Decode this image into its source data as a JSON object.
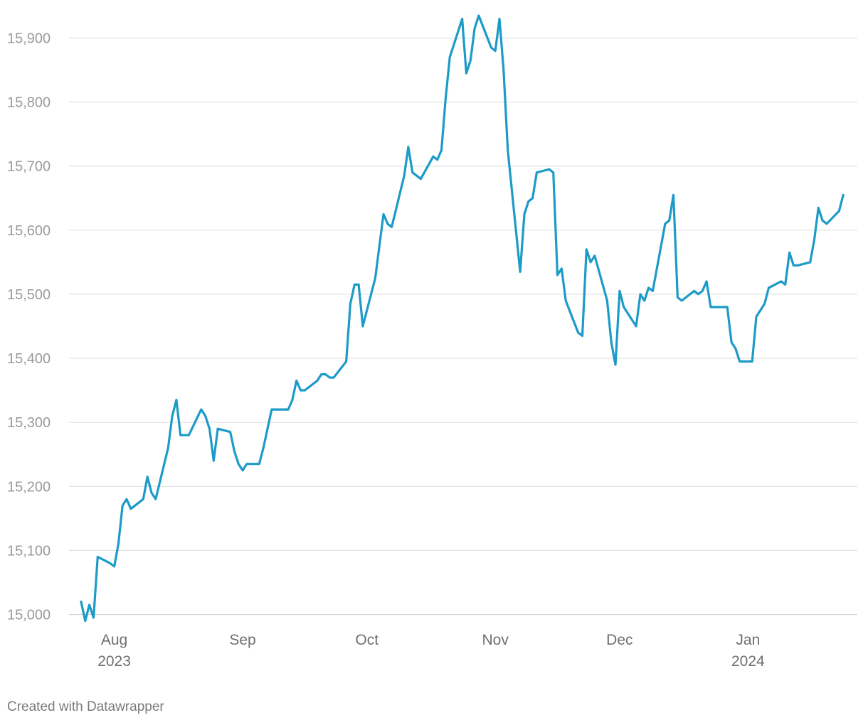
{
  "chart_data": {
    "type": "line",
    "title": "",
    "xlabel": "",
    "ylabel": "",
    "ylim": [
      15000,
      15900
    ],
    "y_ticks": [
      15000,
      15100,
      15200,
      15300,
      15400,
      15500,
      15600,
      15700,
      15800,
      15900
    ],
    "y_tick_labels": [
      "15,000",
      "15,100",
      "15,200",
      "15,300",
      "15,400",
      "15,500",
      "15,600",
      "15,700",
      "15,800",
      "15,900"
    ],
    "x_ticks": [
      {
        "date": "2023-08-01",
        "label": "Aug",
        "sublabel": "2023"
      },
      {
        "date": "2023-09-01",
        "label": "Sep",
        "sublabel": ""
      },
      {
        "date": "2023-10-01",
        "label": "Oct",
        "sublabel": ""
      },
      {
        "date": "2023-11-01",
        "label": "Nov",
        "sublabel": ""
      },
      {
        "date": "2023-12-01",
        "label": "Dec",
        "sublabel": ""
      },
      {
        "date": "2024-01-01",
        "label": "Jan",
        "sublabel": "2024"
      }
    ],
    "grid": true,
    "series": [
      {
        "color": "#1d9bc8",
        "points": [
          [
            "2023-07-24",
            15020
          ],
          [
            "2023-07-25",
            14990
          ],
          [
            "2023-07-26",
            15015
          ],
          [
            "2023-07-27",
            14995
          ],
          [
            "2023-07-28",
            15090
          ],
          [
            "2023-07-31",
            15080
          ],
          [
            "2023-08-01",
            15075
          ],
          [
            "2023-08-02",
            15110
          ],
          [
            "2023-08-03",
            15170
          ],
          [
            "2023-08-04",
            15180
          ],
          [
            "2023-08-05",
            15165
          ],
          [
            "2023-08-08",
            15180
          ],
          [
            "2023-08-09",
            15215
          ],
          [
            "2023-08-10",
            15190
          ],
          [
            "2023-08-11",
            15180
          ],
          [
            "2023-08-14",
            15260
          ],
          [
            "2023-08-15",
            15310
          ],
          [
            "2023-08-16",
            15335
          ],
          [
            "2023-08-17",
            15280
          ],
          [
            "2023-08-19",
            15280
          ],
          [
            "2023-08-22",
            15320
          ],
          [
            "2023-08-23",
            15310
          ],
          [
            "2023-08-24",
            15290
          ],
          [
            "2023-08-25",
            15240
          ],
          [
            "2023-08-26",
            15290
          ],
          [
            "2023-08-29",
            15285
          ],
          [
            "2023-08-30",
            15255
          ],
          [
            "2023-08-31",
            15235
          ],
          [
            "2023-09-01",
            15225
          ],
          [
            "2023-09-02",
            15235
          ],
          [
            "2023-09-05",
            15235
          ],
          [
            "2023-09-06",
            15260
          ],
          [
            "2023-09-08",
            15320
          ],
          [
            "2023-09-12",
            15320
          ],
          [
            "2023-09-13",
            15335
          ],
          [
            "2023-09-14",
            15365
          ],
          [
            "2023-09-15",
            15350
          ],
          [
            "2023-09-16",
            15350
          ],
          [
            "2023-09-19",
            15365
          ],
          [
            "2023-09-20",
            15375
          ],
          [
            "2023-09-21",
            15375
          ],
          [
            "2023-09-22",
            15370
          ],
          [
            "2023-09-23",
            15370
          ],
          [
            "2023-09-26",
            15395
          ],
          [
            "2023-09-27",
            15485
          ],
          [
            "2023-09-28",
            15515
          ],
          [
            "2023-09-29",
            15515
          ],
          [
            "2023-09-30",
            15450
          ],
          [
            "2023-10-03",
            15525
          ],
          [
            "2023-10-05",
            15625
          ],
          [
            "2023-10-06",
            15610
          ],
          [
            "2023-10-07",
            15605
          ],
          [
            "2023-10-10",
            15685
          ],
          [
            "2023-10-11",
            15730
          ],
          [
            "2023-10-12",
            15690
          ],
          [
            "2023-10-14",
            15680
          ],
          [
            "2023-10-17",
            15715
          ],
          [
            "2023-10-18",
            15710
          ],
          [
            "2023-10-19",
            15725
          ],
          [
            "2023-10-20",
            15805
          ],
          [
            "2023-10-21",
            15870
          ],
          [
            "2023-10-24",
            15930
          ],
          [
            "2023-10-25",
            15845
          ],
          [
            "2023-10-26",
            15865
          ],
          [
            "2023-10-27",
            15915
          ],
          [
            "2023-10-28",
            15935
          ],
          [
            "2023-10-31",
            15885
          ],
          [
            "2023-11-01",
            15880
          ],
          [
            "2023-11-02",
            15930
          ],
          [
            "2023-11-03",
            15850
          ],
          [
            "2023-11-04",
            15725
          ],
          [
            "2023-11-07",
            15535
          ],
          [
            "2023-11-08",
            15625
          ],
          [
            "2023-11-09",
            15645
          ],
          [
            "2023-11-10",
            15650
          ],
          [
            "2023-11-11",
            15690
          ],
          [
            "2023-11-14",
            15695
          ],
          [
            "2023-11-15",
            15690
          ],
          [
            "2023-11-16",
            15530
          ],
          [
            "2023-11-17",
            15540
          ],
          [
            "2023-11-18",
            15490
          ],
          [
            "2023-11-21",
            15440
          ],
          [
            "2023-11-22",
            15435
          ],
          [
            "2023-11-23",
            15570
          ],
          [
            "2023-11-24",
            15550
          ],
          [
            "2023-11-25",
            15560
          ],
          [
            "2023-11-28",
            15490
          ],
          [
            "2023-11-29",
            15425
          ],
          [
            "2023-11-30",
            15390
          ],
          [
            "2023-12-01",
            15505
          ],
          [
            "2023-12-02",
            15480
          ],
          [
            "2023-12-05",
            15450
          ],
          [
            "2023-12-06",
            15500
          ],
          [
            "2023-12-07",
            15490
          ],
          [
            "2023-12-08",
            15510
          ],
          [
            "2023-12-09",
            15505
          ],
          [
            "2023-12-12",
            15610
          ],
          [
            "2023-12-13",
            15615
          ],
          [
            "2023-12-14",
            15655
          ],
          [
            "2023-12-15",
            15495
          ],
          [
            "2023-12-16",
            15490
          ],
          [
            "2023-12-19",
            15505
          ],
          [
            "2023-12-20",
            15500
          ],
          [
            "2023-12-21",
            15505
          ],
          [
            "2023-12-22",
            15520
          ],
          [
            "2023-12-23",
            15480
          ],
          [
            "2023-12-27",
            15480
          ],
          [
            "2023-12-28",
            15425
          ],
          [
            "2023-12-29",
            15415
          ],
          [
            "2023-12-30",
            15395
          ],
          [
            "2024-01-02",
            15395
          ],
          [
            "2024-01-03",
            15465
          ],
          [
            "2024-01-04",
            15475
          ],
          [
            "2024-01-05",
            15485
          ],
          [
            "2024-01-06",
            15510
          ],
          [
            "2024-01-09",
            15520
          ],
          [
            "2024-01-10",
            15515
          ],
          [
            "2024-01-11",
            15565
          ],
          [
            "2024-01-12",
            15545
          ],
          [
            "2024-01-13",
            15545
          ],
          [
            "2024-01-16",
            15550
          ],
          [
            "2024-01-17",
            15585
          ],
          [
            "2024-01-18",
            15635
          ],
          [
            "2024-01-19",
            15615
          ],
          [
            "2024-01-20",
            15610
          ],
          [
            "2024-01-23",
            15630
          ],
          [
            "2024-01-24",
            15655
          ]
        ]
      }
    ]
  },
  "footer": {
    "credit": "Created with Datawrapper"
  }
}
